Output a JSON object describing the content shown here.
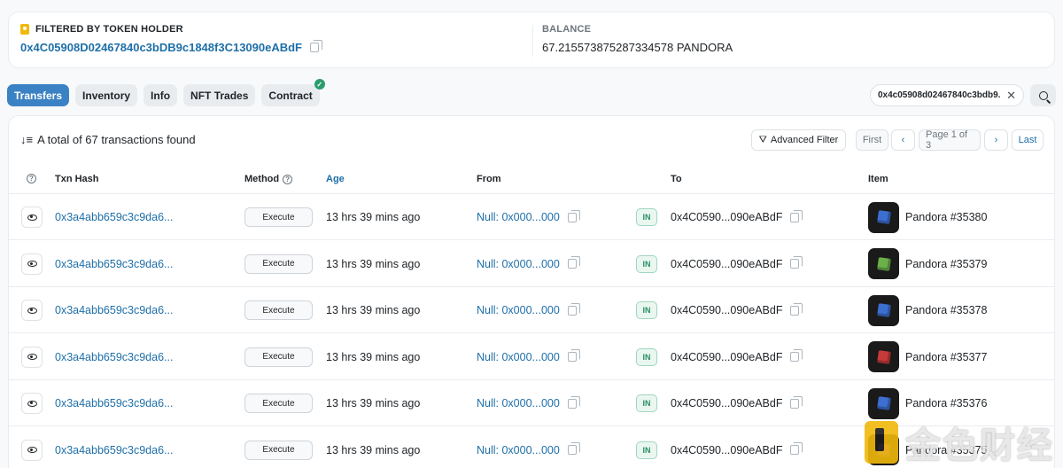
{
  "holder": {
    "label": "FILTERED BY TOKEN HOLDER",
    "address": "0x4C05908D02467840c3bDB9c1848f3C13090eABdF"
  },
  "balance": {
    "label": "BALANCE",
    "value": "67.215573875287334578 PANDORA"
  },
  "tabs": [
    {
      "label": "Transfers",
      "active": true
    },
    {
      "label": "Inventory",
      "active": false
    },
    {
      "label": "Info",
      "active": false
    },
    {
      "label": "NFT Trades",
      "active": false
    },
    {
      "label": "Contract",
      "active": false
    }
  ],
  "filter": {
    "value": "0x4c05908d02467840c3bdb9...",
    "clear_icon": "close-icon",
    "search_icon": "search-icon"
  },
  "summary": "A total of 67 transactions found",
  "toolbar": {
    "advanced_filter": "Advanced Filter",
    "first": "First",
    "prev": "‹",
    "page": "Page 1 of 3",
    "next": "›",
    "last": "Last"
  },
  "columns": {
    "txn_hash": "Txn Hash",
    "method": "Method",
    "age": "Age",
    "from": "From",
    "to": "To",
    "item": "Item"
  },
  "rows": [
    {
      "hash": "0x3a4abb659c3c9da6...",
      "method": "Execute",
      "age": "13 hrs 39 mins ago",
      "from": "Null: 0x000...000",
      "direction": "IN",
      "to": "0x4C0590...090eABdF",
      "item": "Pandora #35380",
      "color": "#3d6fd1"
    },
    {
      "hash": "0x3a4abb659c3c9da6...",
      "method": "Execute",
      "age": "13 hrs 39 mins ago",
      "from": "Null: 0x000...000",
      "direction": "IN",
      "to": "0x4C0590...090eABdF",
      "item": "Pandora #35379",
      "color": "#6bb04a"
    },
    {
      "hash": "0x3a4abb659c3c9da6...",
      "method": "Execute",
      "age": "13 hrs 39 mins ago",
      "from": "Null: 0x000...000",
      "direction": "IN",
      "to": "0x4C0590...090eABdF",
      "item": "Pandora #35378",
      "color": "#3d6fd1"
    },
    {
      "hash": "0x3a4abb659c3c9da6...",
      "method": "Execute",
      "age": "13 hrs 39 mins ago",
      "from": "Null: 0x000...000",
      "direction": "IN",
      "to": "0x4C0590...090eABdF",
      "item": "Pandora #35377",
      "color": "#c73a3a"
    },
    {
      "hash": "0x3a4abb659c3c9da6...",
      "method": "Execute",
      "age": "13 hrs 39 mins ago",
      "from": "Null: 0x000...000",
      "direction": "IN",
      "to": "0x4C0590...090eABdF",
      "item": "Pandora #35376",
      "color": "#3d6fd1"
    },
    {
      "hash": "0x3a4abb659c3c9da6...",
      "method": "Execute",
      "age": "13 hrs 39 mins ago",
      "from": "Null: 0x000...000",
      "direction": "IN",
      "to": "0x4C0590...090eABdF",
      "item": "Pandora #35375",
      "color": "#9b59d0"
    }
  ],
  "watermark": "金色财经"
}
